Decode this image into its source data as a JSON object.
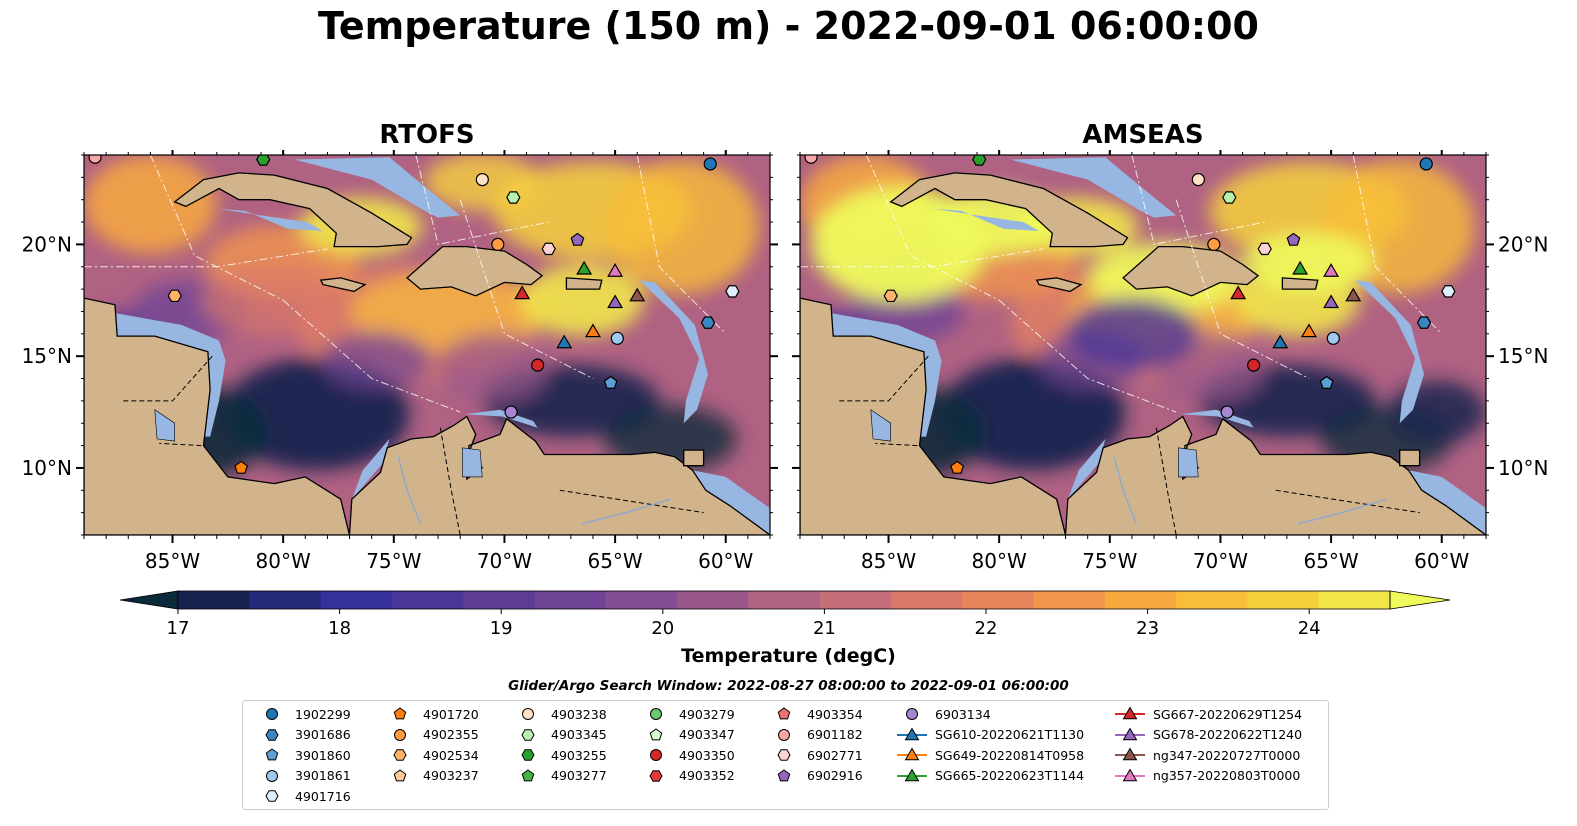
{
  "title": "Temperature (150 m) - 2022-09-01 06:00:00",
  "panels": [
    {
      "title": "RTOFS"
    },
    {
      "title": "AMSEAS"
    }
  ],
  "colorbar": {
    "label": "Temperature (degC)",
    "ticks": [
      "17",
      "18",
      "19",
      "20",
      "21",
      "22",
      "23",
      "24"
    ],
    "tick_values": [
      17,
      18,
      19,
      20,
      21,
      22,
      23,
      24
    ],
    "range": [
      16.75,
      24.5
    ],
    "colors": [
      "#0a2a3c",
      "#17244f",
      "#242b7a",
      "#36309a",
      "#4a3599",
      "#5d3c96",
      "#6f4496",
      "#844e92",
      "#9a588a",
      "#b06283",
      "#c56d78",
      "#d9786b",
      "#e8855c",
      "#f3964c",
      "#f8a93e",
      "#f9bd3a",
      "#f6d13d",
      "#f1e54a",
      "#eefb5b"
    ]
  },
  "legend": {
    "title": "Glider/Argo Search Window: 2022-08-27 08:00:00 to 2022-09-01 06:00:00",
    "items": [
      {
        "label": "1902299",
        "marker": "circle",
        "color": "#1f77b4"
      },
      {
        "label": "3901686",
        "marker": "hexagon",
        "color": "#3a86c0"
      },
      {
        "label": "3901860",
        "marker": "pentagon",
        "color": "#5c9fd6"
      },
      {
        "label": "3901861",
        "marker": "circle",
        "color": "#9ec8ee"
      },
      {
        "label": "4901716",
        "marker": "hexagon",
        "color": "#ddeefc"
      },
      {
        "label": "4901720",
        "marker": "pentagon",
        "color": "#ff7f0e"
      },
      {
        "label": "4902355",
        "marker": "circle",
        "color": "#ff9b41"
      },
      {
        "label": "4902534",
        "marker": "hexagon",
        "color": "#ffb36b"
      },
      {
        "label": "4903237",
        "marker": "pentagon",
        "color": "#ffc99a"
      },
      {
        "label": "4903238",
        "marker": "circle",
        "color": "#ffe2c6"
      },
      {
        "label": "4903345",
        "marker": "hexagon",
        "color": "#b8f0b0"
      },
      {
        "label": "4903255",
        "marker": "hexagon",
        "color": "#2ca02c"
      },
      {
        "label": "4903277",
        "marker": "pentagon",
        "color": "#43b343"
      },
      {
        "label": "4903279",
        "marker": "circle",
        "color": "#6cc86c"
      },
      {
        "label": "4903347",
        "marker": "pentagon",
        "color": "#d8f8cf"
      },
      {
        "label": "4903350",
        "marker": "circle",
        "color": "#d62728"
      },
      {
        "label": "4903352",
        "marker": "hexagon",
        "color": "#e03a3a"
      },
      {
        "label": "4903354",
        "marker": "pentagon",
        "color": "#ee7070"
      },
      {
        "label": "6901182",
        "marker": "circle",
        "color": "#f7a6a6"
      },
      {
        "label": "6902771",
        "marker": "hexagon",
        "color": "#fcd2d2"
      },
      {
        "label": "6902916",
        "marker": "pentagon",
        "color": "#9467bd"
      },
      {
        "label": "6903134",
        "marker": "circle",
        "color": "#a885d0"
      },
      {
        "label": "SG610-20220621T1130",
        "marker": "triangle",
        "color": "#1f77b4"
      },
      {
        "label": "SG649-20220814T0958",
        "marker": "triangle",
        "color": "#ff7f0e"
      },
      {
        "label": "SG665-20220623T1144",
        "marker": "triangle",
        "color": "#2ca02c"
      },
      {
        "label": "SG667-20220629T1254",
        "marker": "triangle",
        "color": "#d62728"
      },
      {
        "label": "SG678-20220622T1240",
        "marker": "triangle",
        "color": "#9467bd"
      },
      {
        "label": "ng347-20220727T0000",
        "marker": "triangle",
        "color": "#8c564b"
      },
      {
        "label": "ng357-20220803T0000",
        "marker": "triangle",
        "color": "#e377c2"
      }
    ]
  },
  "chart_data": {
    "type": "heatmap",
    "title": "Temperature (150 m) - 2022-09-01 06:00:00",
    "panels": [
      "RTOFS",
      "AMSEAS"
    ],
    "variable": "Temperature (degC)",
    "depth_m": 150,
    "xlim": [
      -89,
      -58
    ],
    "ylim": [
      7,
      24
    ],
    "xticks": [
      -85,
      -80,
      -75,
      -70,
      -65,
      -60
    ],
    "xtick_labels": [
      "85°W",
      "80°W",
      "75°W",
      "70°W",
      "65°W",
      "60°W"
    ],
    "yticks": [
      10,
      15,
      20
    ],
    "ytick_labels": [
      "10°N",
      "15°N",
      "20°N"
    ],
    "colorbar_range": [
      17,
      24
    ],
    "land_color": "#d2b48c",
    "shallow_water_color": "#97b6e1",
    "observations": [
      {
        "id": "1902299",
        "lon": -60.7,
        "lat": 23.6
      },
      {
        "id": "3901686",
        "lon": -60.8,
        "lat": 16.5
      },
      {
        "id": "3901860",
        "lon": -65.2,
        "lat": 13.8
      },
      {
        "id": "3901861",
        "lon": -64.9,
        "lat": 15.8
      },
      {
        "id": "4901716",
        "lon": -59.7,
        "lat": 17.9
      },
      {
        "id": "4901720",
        "lon": -81.9,
        "lat": 10.0
      },
      {
        "id": "4902355",
        "lon": -70.3,
        "lat": 20.0
      },
      {
        "id": "4902534",
        "lon": -84.9,
        "lat": 17.7
      },
      {
        "id": "4903238",
        "lon": -71.0,
        "lat": 22.9
      },
      {
        "id": "4903345",
        "lon": -69.6,
        "lat": 22.1
      },
      {
        "id": "4903255",
        "lon": -80.9,
        "lat": 23.8
      },
      {
        "id": "4903350",
        "lon": -68.5,
        "lat": 14.6
      },
      {
        "id": "6901182",
        "lon": -88.5,
        "lat": 23.9
      },
      {
        "id": "6902771",
        "lon": -68.0,
        "lat": 19.8
      },
      {
        "id": "6902916",
        "lon": -66.7,
        "lat": 20.2
      },
      {
        "id": "6903134",
        "lon": -69.7,
        "lat": 12.5
      },
      {
        "id": "SG610-20220621T1130",
        "lon": -67.3,
        "lat": 15.6
      },
      {
        "id": "SG649-20220814T0958",
        "lon": -66.0,
        "lat": 16.1
      },
      {
        "id": "SG665-20220623T1144",
        "lon": -66.4,
        "lat": 18.9
      },
      {
        "id": "SG667-20220629T1254",
        "lon": -69.2,
        "lat": 17.8
      },
      {
        "id": "SG678-20220622T1240",
        "lon": -65.0,
        "lat": 17.4
      },
      {
        "id": "ng347-20220727T0000",
        "lon": -64.0,
        "lat": 17.7
      },
      {
        "id": "ng357-20220803T0000",
        "lon": -65.0,
        "lat": 18.8
      }
    ]
  }
}
